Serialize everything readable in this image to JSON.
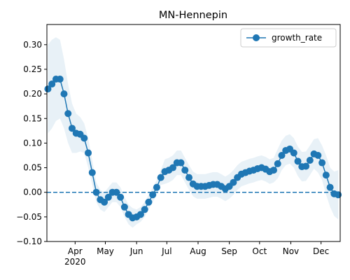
{
  "chart_data": {
    "type": "line",
    "title": "MN-Hennepin",
    "x": [
      65,
      69,
      73,
      77,
      81,
      85,
      89,
      93,
      97,
      101,
      105,
      109,
      113,
      117,
      121,
      125,
      129,
      133,
      137,
      141,
      145,
      149,
      153,
      157,
      161,
      165,
      169,
      173,
      177,
      181,
      185,
      189,
      193,
      197,
      201,
      205,
      209,
      213,
      217,
      221,
      225,
      229,
      233,
      237,
      241,
      245,
      249,
      253,
      257,
      261,
      265,
      269,
      273,
      277,
      281,
      285,
      289,
      293,
      297,
      301,
      305,
      309,
      313,
      317,
      321,
      325,
      329,
      333,
      337,
      341,
      345,
      349,
      353
    ],
    "series": [
      {
        "name": "growth_rate",
        "color": "#1f77b4",
        "values": [
          0.21,
          0.22,
          0.23,
          0.23,
          0.2,
          0.16,
          0.13,
          0.12,
          0.118,
          0.11,
          0.08,
          0.04,
          0.0,
          -0.015,
          -0.02,
          -0.01,
          0.0,
          0.0,
          -0.01,
          -0.03,
          -0.045,
          -0.052,
          -0.05,
          -0.045,
          -0.035,
          -0.02,
          -0.005,
          0.01,
          0.03,
          0.042,
          0.045,
          0.05,
          0.06,
          0.06,
          0.045,
          0.03,
          0.017,
          0.012,
          0.012,
          0.012,
          0.014,
          0.016,
          0.016,
          0.012,
          0.007,
          0.012,
          0.02,
          0.03,
          0.037,
          0.04,
          0.043,
          0.045,
          0.048,
          0.05,
          0.047,
          0.042,
          0.045,
          0.058,
          0.075,
          0.085,
          0.088,
          0.08,
          0.063,
          0.052,
          0.053,
          0.065,
          0.078,
          0.075,
          0.06,
          0.035,
          0.01,
          -0.003,
          -0.005
        ],
        "lower": [
          0.12,
          0.13,
          0.145,
          0.15,
          0.13,
          0.1,
          0.08,
          0.08,
          0.083,
          0.08,
          0.05,
          0.015,
          -0.02,
          -0.035,
          -0.04,
          -0.03,
          -0.02,
          -0.02,
          -0.03,
          -0.05,
          -0.065,
          -0.072,
          -0.065,
          -0.06,
          -0.05,
          -0.035,
          -0.02,
          -0.005,
          0.015,
          0.017,
          0.02,
          0.025,
          0.035,
          0.035,
          0.02,
          0.005,
          -0.008,
          -0.013,
          -0.013,
          -0.013,
          -0.011,
          -0.009,
          -0.009,
          -0.013,
          -0.018,
          -0.013,
          -0.005,
          0.005,
          0.012,
          0.015,
          0.018,
          0.02,
          0.023,
          0.025,
          0.022,
          0.017,
          0.02,
          0.028,
          0.045,
          0.055,
          0.058,
          0.05,
          0.033,
          0.022,
          0.023,
          0.035,
          0.048,
          0.04,
          0.025,
          -0.005,
          -0.03,
          -0.048,
          -0.055
        ],
        "upper": [
          0.3,
          0.31,
          0.315,
          0.31,
          0.27,
          0.22,
          0.18,
          0.16,
          0.153,
          0.14,
          0.11,
          0.065,
          0.02,
          0.005,
          0.0,
          0.01,
          0.02,
          0.02,
          0.01,
          -0.01,
          -0.025,
          -0.032,
          -0.035,
          -0.03,
          -0.02,
          -0.005,
          0.01,
          0.025,
          0.045,
          0.067,
          0.07,
          0.075,
          0.085,
          0.085,
          0.07,
          0.055,
          0.042,
          0.037,
          0.037,
          0.037,
          0.039,
          0.041,
          0.041,
          0.037,
          0.032,
          0.037,
          0.045,
          0.055,
          0.062,
          0.065,
          0.068,
          0.07,
          0.073,
          0.075,
          0.072,
          0.067,
          0.07,
          0.088,
          0.105,
          0.115,
          0.118,
          0.11,
          0.093,
          0.082,
          0.083,
          0.095,
          0.108,
          0.11,
          0.095,
          0.075,
          0.05,
          0.042,
          0.045
        ]
      }
    ],
    "hline": 0,
    "xlim": [
      64,
      355
    ],
    "xticks": [
      {
        "value": 92,
        "label": "Apr\n2020"
      },
      {
        "value": 122,
        "label": "May"
      },
      {
        "value": 153,
        "label": "Jun"
      },
      {
        "value": 183,
        "label": "Jul"
      },
      {
        "value": 214,
        "label": "Aug"
      },
      {
        "value": 245,
        "label": "Sep"
      },
      {
        "value": 275,
        "label": "Oct"
      },
      {
        "value": 306,
        "label": "Nov"
      },
      {
        "value": 336,
        "label": "Dec"
      }
    ],
    "ylim": [
      -0.1,
      0.341
    ],
    "yticks": [
      {
        "value": -0.1,
        "label": "−0.10"
      },
      {
        "value": -0.05,
        "label": "−0.05"
      },
      {
        "value": 0,
        "label": "0.00"
      },
      {
        "value": 0.05,
        "label": "0.05"
      },
      {
        "value": 0.1,
        "label": "0.10"
      },
      {
        "value": 0.15,
        "label": "0.15"
      },
      {
        "value": 0.2,
        "label": "0.20"
      },
      {
        "value": 0.25,
        "label": "0.25"
      },
      {
        "value": 0.3,
        "label": "0.30"
      }
    ],
    "legend": "upper right"
  }
}
